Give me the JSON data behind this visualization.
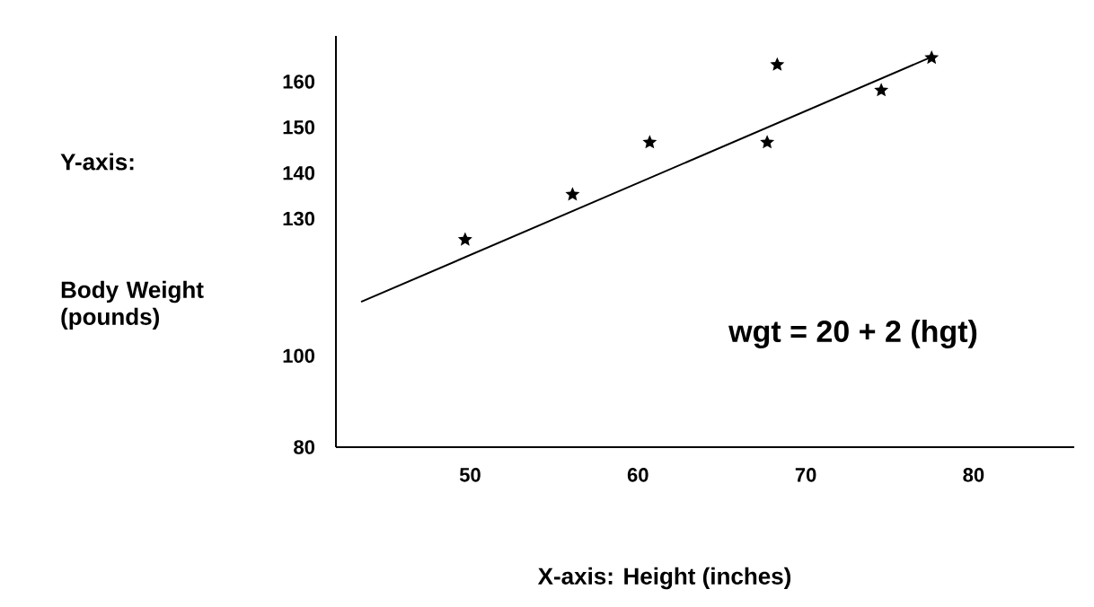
{
  "chart_data": {
    "type": "scatter",
    "xlabel": "X-axis:  Height (inches)",
    "ylabel": "Body Weight (pounds)",
    "annotations": [
      "Y-axis:",
      "wgt  =  20  +   2 (hgt)"
    ],
    "series": [
      {
        "color": "#000000",
        "marker": "star",
        "x": [
          49.7,
          56.1,
          60.7,
          67.7,
          68.3,
          74.5,
          77.5
        ],
        "values": [
          125.4,
          135.3,
          146.7,
          146.7,
          163.7,
          158.1,
          165.2
        ]
      },
      {
        "type": "line",
        "color": "#000000",
        "marker": "none",
        "x": [
          43.5,
          77.5
        ],
        "values": [
          111.8,
          165.4
        ]
      }
    ],
    "xlim": [
      42,
      86
    ],
    "ylim": [
      80,
      170
    ],
    "xticks": [
      50,
      60,
      70,
      80
    ],
    "yticks": [
      80,
      100,
      130,
      140,
      150,
      160
    ],
    "grid": false
  }
}
